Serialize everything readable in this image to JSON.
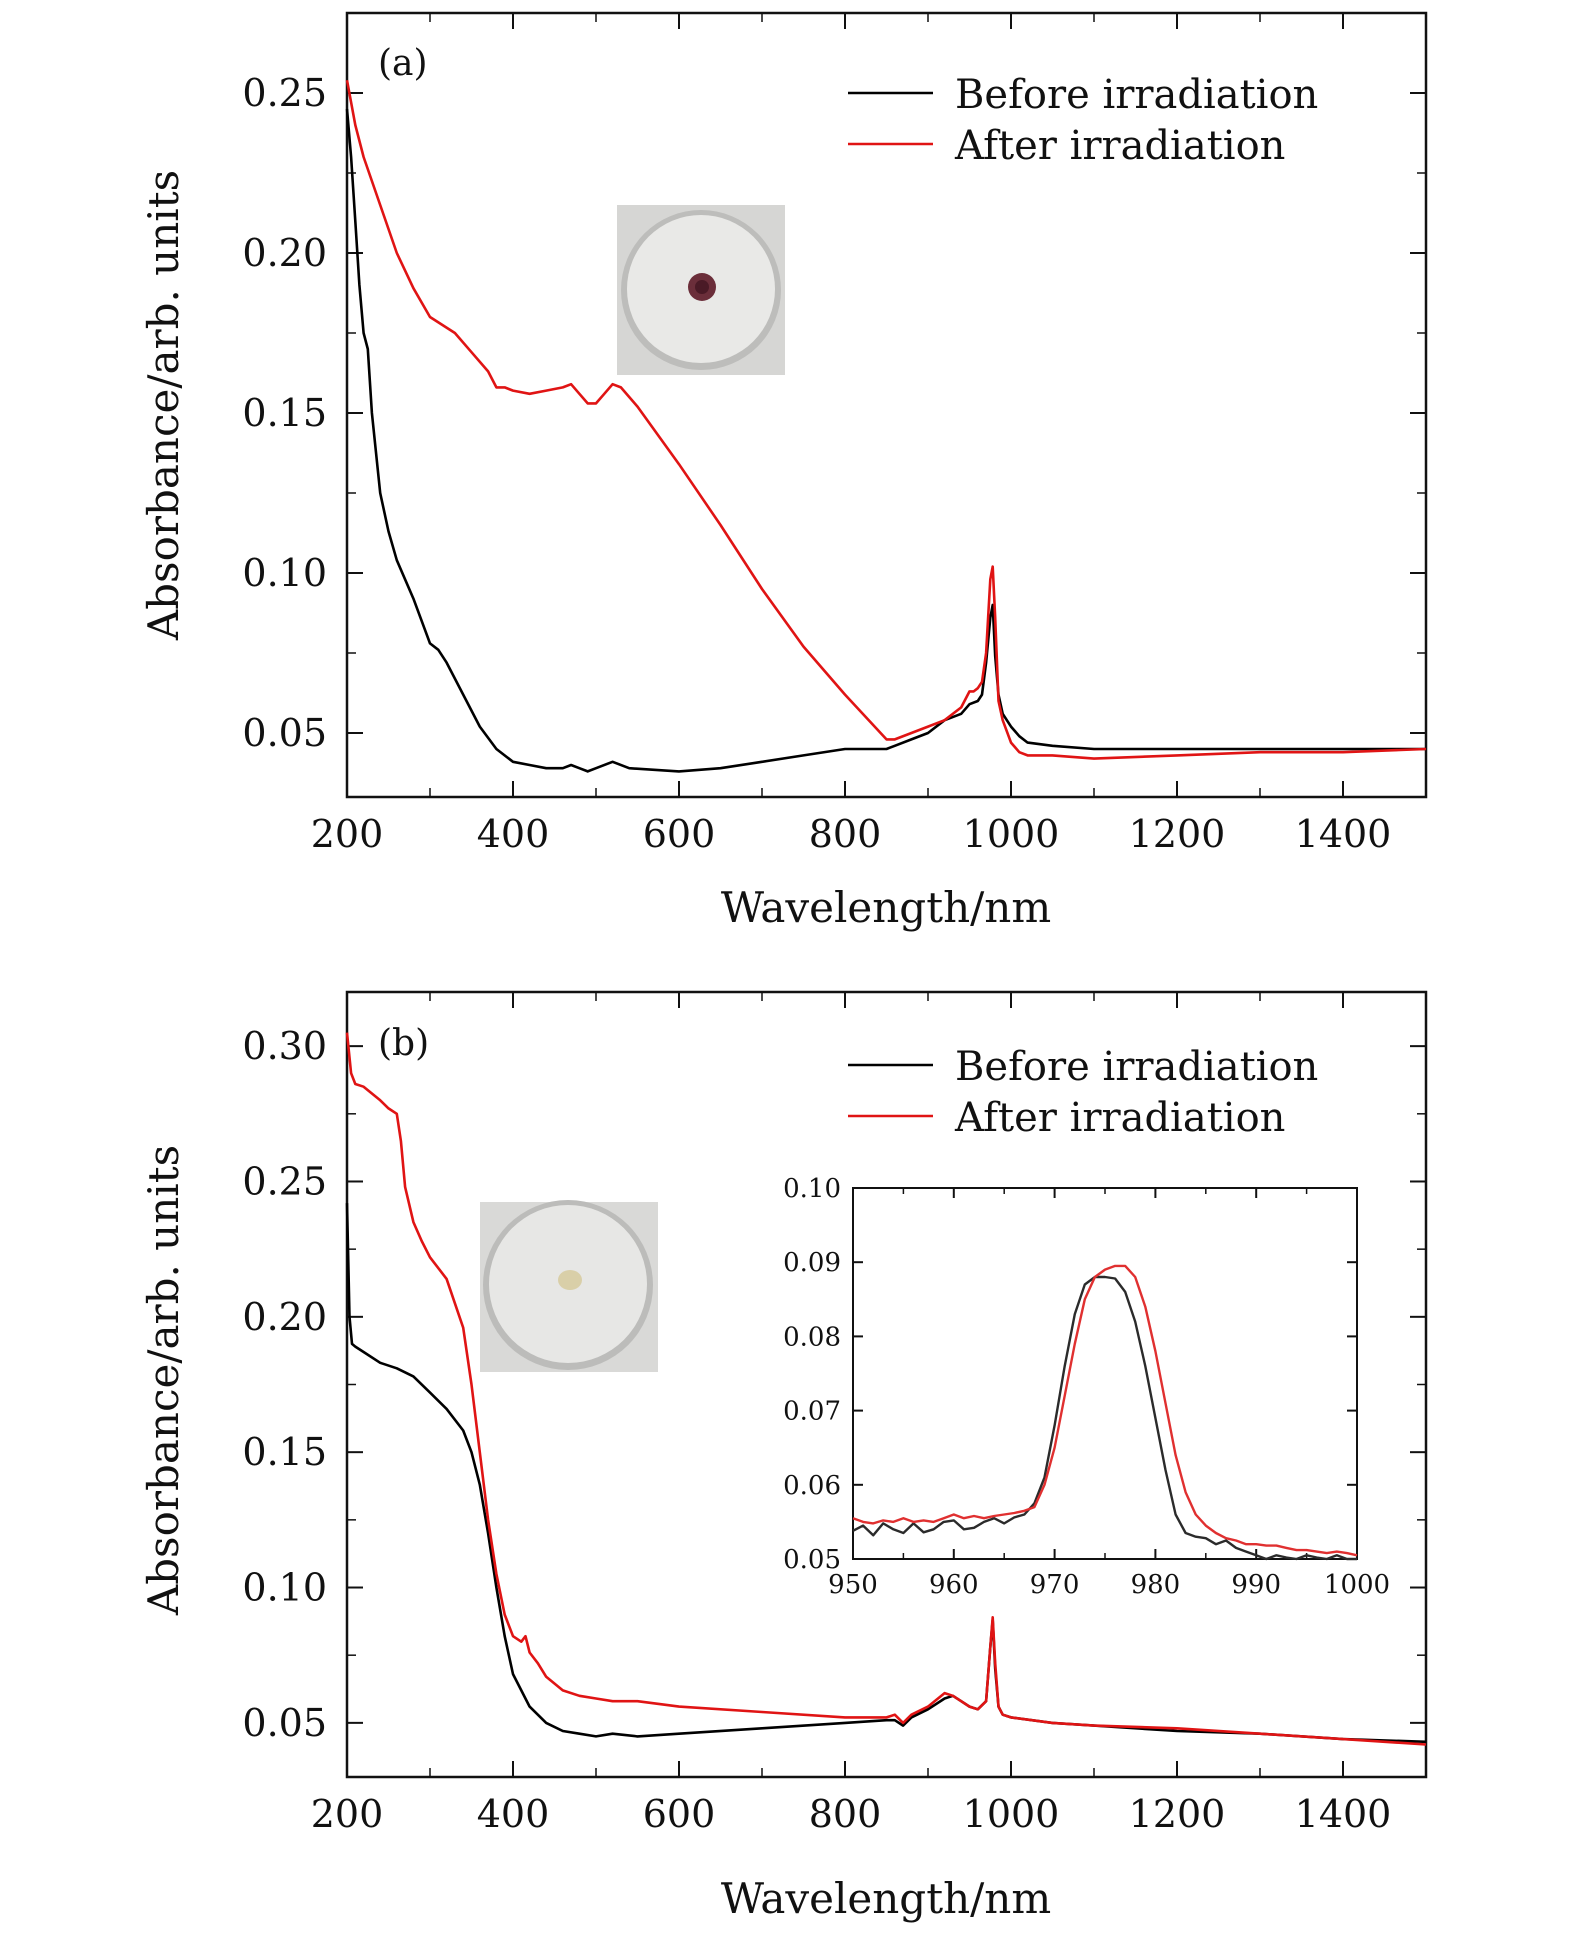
{
  "chart_data": [
    {
      "type": "line",
      "panel_label": "(a)",
      "xlabel": "Wavelength/nm",
      "ylabel": "Absorbance/arb. units",
      "xlim": [
        200,
        1500
      ],
      "ylim": [
        0.03,
        0.275
      ],
      "xticks": [
        200,
        400,
        600,
        800,
        1000,
        1200,
        1400
      ],
      "yticks": [
        0.05,
        0.1,
        0.15,
        0.2,
        0.25
      ],
      "ytick_labels": [
        "0.05",
        "0.10",
        "0.15",
        "0.20",
        "0.25"
      ],
      "legend_position": "top-right",
      "series": [
        {
          "name": "Before irradiation",
          "color": "#000000",
          "x": [
            200,
            205,
            210,
            215,
            220,
            225,
            230,
            240,
            250,
            260,
            280,
            300,
            310,
            320,
            340,
            360,
            380,
            400,
            420,
            440,
            460,
            470,
            480,
            490,
            500,
            520,
            540,
            600,
            650,
            700,
            750,
            800,
            850,
            860,
            880,
            900,
            920,
            940,
            950,
            960,
            965,
            970,
            975,
            978,
            981,
            985,
            990,
            1000,
            1010,
            1020,
            1050,
            1100,
            1200,
            1300,
            1400,
            1500
          ],
          "y": [
            0.245,
            0.23,
            0.21,
            0.19,
            0.175,
            0.17,
            0.15,
            0.125,
            0.113,
            0.104,
            0.092,
            0.078,
            0.076,
            0.072,
            0.062,
            0.052,
            0.045,
            0.041,
            0.04,
            0.039,
            0.039,
            0.04,
            0.039,
            0.038,
            0.039,
            0.041,
            0.039,
            0.038,
            0.039,
            0.041,
            0.043,
            0.045,
            0.045,
            0.046,
            0.048,
            0.05,
            0.054,
            0.056,
            0.059,
            0.06,
            0.062,
            0.072,
            0.086,
            0.09,
            0.074,
            0.062,
            0.056,
            0.052,
            0.049,
            0.047,
            0.046,
            0.045,
            0.045,
            0.045,
            0.045,
            0.045
          ]
        },
        {
          "name": "After irradiation",
          "color": "#e01414",
          "x": [
            200,
            210,
            220,
            240,
            260,
            280,
            300,
            330,
            350,
            370,
            380,
            390,
            400,
            420,
            440,
            460,
            470,
            480,
            490,
            500,
            510,
            520,
            530,
            550,
            600,
            650,
            700,
            750,
            800,
            850,
            860,
            880,
            900,
            920,
            940,
            950,
            955,
            960,
            965,
            970,
            975,
            978,
            981,
            985,
            990,
            1000,
            1010,
            1020,
            1050,
            1100,
            1200,
            1300,
            1400,
            1500
          ],
          "y": [
            0.254,
            0.24,
            0.23,
            0.215,
            0.2,
            0.189,
            0.18,
            0.175,
            0.169,
            0.163,
            0.158,
            0.158,
            0.157,
            0.156,
            0.157,
            0.158,
            0.159,
            0.156,
            0.153,
            0.153,
            0.156,
            0.159,
            0.158,
            0.152,
            0.134,
            0.115,
            0.095,
            0.077,
            0.062,
            0.048,
            0.048,
            0.05,
            0.052,
            0.054,
            0.058,
            0.063,
            0.063,
            0.064,
            0.066,
            0.075,
            0.098,
            0.102,
            0.086,
            0.06,
            0.054,
            0.047,
            0.044,
            0.043,
            0.043,
            0.042,
            0.043,
            0.044,
            0.044,
            0.045
          ]
        }
      ]
    },
    {
      "type": "line",
      "panel_label": "(b)",
      "xlabel": "Wavelength/nm",
      "ylabel": "Absorbance/arb. units",
      "xlim": [
        200,
        1500
      ],
      "ylim": [
        0.03,
        0.32
      ],
      "xticks": [
        200,
        400,
        600,
        800,
        1000,
        1200,
        1400
      ],
      "yticks": [
        0.05,
        0.1,
        0.15,
        0.2,
        0.25,
        0.3
      ],
      "ytick_labels": [
        "0.05",
        "0.10",
        "0.15",
        "0.20",
        "0.25",
        "0.30"
      ],
      "legend_position": "top-right",
      "series": [
        {
          "name": "Before irradiation",
          "color": "#000000",
          "x": [
            200,
            203,
            206,
            210,
            220,
            240,
            260,
            280,
            300,
            320,
            340,
            350,
            360,
            370,
            380,
            390,
            400,
            420,
            440,
            460,
            480,
            500,
            520,
            550,
            600,
            700,
            800,
            850,
            860,
            870,
            880,
            900,
            920,
            930,
            940,
            950,
            960,
            970,
            975,
            978,
            981,
            985,
            990,
            1000,
            1050,
            1100,
            1200,
            1300,
            1400,
            1500
          ],
          "y": [
            0.242,
            0.2,
            0.19,
            0.189,
            0.187,
            0.183,
            0.181,
            0.178,
            0.172,
            0.166,
            0.158,
            0.15,
            0.138,
            0.12,
            0.1,
            0.082,
            0.068,
            0.056,
            0.05,
            0.047,
            0.046,
            0.045,
            0.046,
            0.045,
            0.046,
            0.048,
            0.05,
            0.051,
            0.051,
            0.049,
            0.052,
            0.055,
            0.059,
            0.06,
            0.058,
            0.056,
            0.055,
            0.058,
            0.078,
            0.088,
            0.07,
            0.056,
            0.053,
            0.052,
            0.05,
            0.049,
            0.047,
            0.046,
            0.044,
            0.043
          ]
        },
        {
          "name": "After irradiation",
          "color": "#e01414",
          "x": [
            200,
            205,
            210,
            220,
            240,
            250,
            260,
            265,
            270,
            280,
            290,
            300,
            320,
            340,
            350,
            360,
            370,
            380,
            390,
            400,
            410,
            415,
            420,
            430,
            440,
            460,
            480,
            500,
            520,
            550,
            600,
            700,
            800,
            850,
            860,
            870,
            880,
            900,
            920,
            930,
            940,
            950,
            960,
            970,
            975,
            978,
            981,
            985,
            990,
            1000,
            1050,
            1100,
            1200,
            1300,
            1400,
            1500
          ],
          "y": [
            0.305,
            0.29,
            0.286,
            0.285,
            0.28,
            0.277,
            0.275,
            0.265,
            0.248,
            0.235,
            0.228,
            0.222,
            0.214,
            0.196,
            0.175,
            0.15,
            0.125,
            0.105,
            0.09,
            0.082,
            0.08,
            0.082,
            0.076,
            0.072,
            0.067,
            0.062,
            0.06,
            0.059,
            0.058,
            0.058,
            0.056,
            0.054,
            0.052,
            0.052,
            0.053,
            0.05,
            0.053,
            0.056,
            0.061,
            0.06,
            0.058,
            0.056,
            0.055,
            0.058,
            0.078,
            0.089,
            0.072,
            0.056,
            0.053,
            0.052,
            0.05,
            0.049,
            0.048,
            0.046,
            0.044,
            0.042
          ]
        }
      ],
      "inset": {
        "type": "line",
        "xlim": [
          950,
          1000
        ],
        "ylim": [
          0.05,
          0.1
        ],
        "xticks": [
          950,
          960,
          970,
          980,
          990,
          1000
        ],
        "yticks": [
          0.05,
          0.06,
          0.07,
          0.08,
          0.09,
          0.1
        ],
        "ytick_labels": [
          "0.05",
          "0.06",
          "0.07",
          "0.08",
          "0.09",
          "0.10"
        ],
        "series": [
          {
            "color": "#2b2b2b",
            "x": [
              950,
              951,
              952,
              953,
              954,
              955,
              956,
              957,
              958,
              959,
              960,
              961,
              962,
              963,
              964,
              965,
              966,
              967,
              968,
              969,
              970,
              971,
              972,
              973,
              974,
              975,
              976,
              977,
              978,
              979,
              980,
              981,
              982,
              983,
              984,
              985,
              986,
              987,
              988,
              989,
              990,
              991,
              992,
              993,
              994,
              995,
              996,
              997,
              998,
              999,
              1000
            ],
            "y": [
              0.0538,
              0.0545,
              0.0532,
              0.0548,
              0.054,
              0.0535,
              0.0548,
              0.0536,
              0.054,
              0.055,
              0.0552,
              0.054,
              0.0542,
              0.055,
              0.0555,
              0.0548,
              0.0556,
              0.056,
              0.0575,
              0.061,
              0.068,
              0.076,
              0.083,
              0.087,
              0.088,
              0.088,
              0.0878,
              0.086,
              0.082,
              0.076,
              0.069,
              0.062,
              0.056,
              0.0535,
              0.053,
              0.0528,
              0.052,
              0.0525,
              0.0515,
              0.051,
              0.0505,
              0.05,
              0.0505,
              0.0502,
              0.05,
              0.0505,
              0.0502,
              0.05,
              0.0505,
              0.05,
              0.05
            ]
          },
          {
            "color": "#e03030",
            "x": [
              950,
              951,
              952,
              953,
              954,
              955,
              956,
              957,
              958,
              959,
              960,
              961,
              962,
              963,
              964,
              965,
              966,
              967,
              968,
              969,
              970,
              971,
              972,
              973,
              974,
              975,
              976,
              977,
              978,
              979,
              980,
              981,
              982,
              983,
              984,
              985,
              986,
              987,
              988,
              989,
              990,
              991,
              992,
              993,
              994,
              995,
              996,
              997,
              998,
              999,
              1000
            ],
            "y": [
              0.0555,
              0.055,
              0.0548,
              0.0552,
              0.055,
              0.0555,
              0.055,
              0.0552,
              0.055,
              0.0555,
              0.056,
              0.0555,
              0.0558,
              0.0555,
              0.0558,
              0.056,
              0.0562,
              0.0565,
              0.057,
              0.06,
              0.065,
              0.072,
              0.079,
              0.085,
              0.088,
              0.089,
              0.0895,
              0.0895,
              0.088,
              0.084,
              0.078,
              0.071,
              0.064,
              0.059,
              0.056,
              0.0545,
              0.0535,
              0.0528,
              0.0525,
              0.052,
              0.052,
              0.0518,
              0.0518,
              0.0515,
              0.0512,
              0.0512,
              0.051,
              0.0508,
              0.051,
              0.0508,
              0.0505
            ]
          }
        ]
      }
    }
  ]
}
